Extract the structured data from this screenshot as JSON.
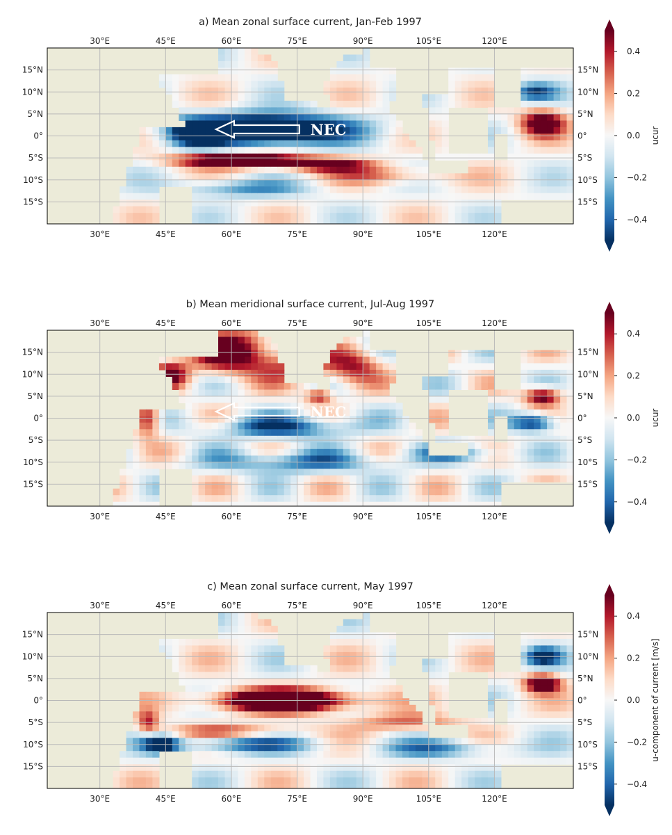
{
  "panels": [
    {
      "key": "a",
      "title": "a) Mean zonal surface current, Jan-Feb 1997",
      "cbar_label": "ucur",
      "annotation": "NEC",
      "field_description": "zonal current",
      "colors": {
        "neg": "#0b3d78",
        "pos": "#a1112a",
        "land": "#ecebd9"
      }
    },
    {
      "key": "b",
      "title": "b) Mean meridional surface current, Jul-Aug 1997",
      "cbar_label": "ucur",
      "annotation": "NEC",
      "colors": {
        "neg": "#0b3d78",
        "pos": "#a1112a",
        "land": "#ecebd9"
      }
    },
    {
      "key": "c",
      "title": "c) Mean zonal surface current, May 1997",
      "cbar_label": "u-component of current [m/s]",
      "annotation": "",
      "colors": {
        "neg": "#0b3d78",
        "pos": "#a1112a",
        "land": "#ecebd9"
      }
    }
  ],
  "axes": {
    "lon_ticks": [
      "30°E",
      "45°E",
      "60°E",
      "75°E",
      "90°E",
      "105°E",
      "120°E"
    ],
    "lat_ticks": [
      "15°N",
      "10°N",
      "5°N",
      "0°",
      "5°S",
      "10°S",
      "15°S"
    ],
    "lon_range": [
      18,
      138
    ],
    "lat_range": [
      -20,
      20
    ]
  },
  "colorbar": {
    "ticks": [
      "0.4",
      "0.2",
      "0.0",
      "−0.2",
      "−0.4"
    ],
    "range": [
      -0.5,
      0.5
    ],
    "colormap": "RdBu_r"
  }
}
